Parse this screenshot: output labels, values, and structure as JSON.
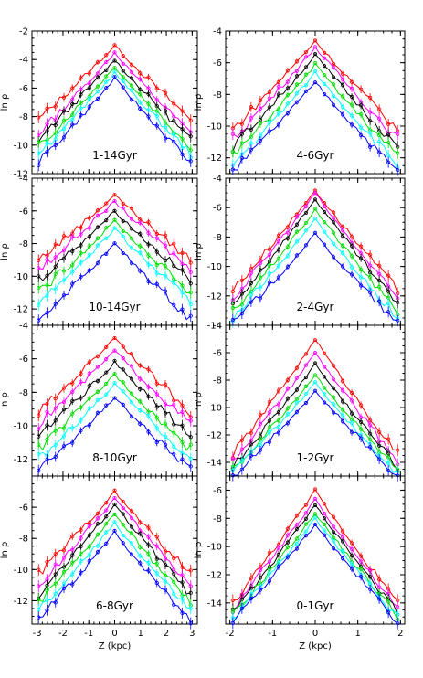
{
  "chart_data": {
    "type": "line",
    "columns": 2,
    "rows": 4,
    "series_colors": [
      "#ff0000",
      "#ff00ff",
      "#000000",
      "#00dd00",
      "#00ffff",
      "#0000ff"
    ],
    "left_column": {
      "xlabel": "Z (kpc)",
      "xlim": [
        -3.2,
        3.2
      ],
      "xticks": [
        "-3",
        "-2",
        "-1",
        "0",
        "1",
        "2",
        "3"
      ]
    },
    "right_column": {
      "xlabel": "Z (kpc)",
      "xlim": [
        -2.1,
        2.1
      ],
      "xticks": [
        "-2",
        "-1",
        "0",
        "1",
        "2"
      ]
    },
    "panels": [
      {
        "id": "left-1",
        "col": 0,
        "row": 0,
        "label": "1-14Gyr",
        "ylabel": "ln ρ",
        "ylim": [
          -12,
          -2
        ],
        "yticks": [
          "-2",
          "-4",
          "-6",
          "-8",
          "-10",
          "-12"
        ],
        "curves": [
          {
            "peak": -3.0,
            "edge": -8.2
          },
          {
            "peak": -3.5,
            "edge": -9.2
          },
          {
            "peak": -4.0,
            "edge": -9.6
          },
          {
            "peak": -4.5,
            "edge": -10.1
          },
          {
            "peak": -4.9,
            "edge": -10.6
          },
          {
            "peak": -5.3,
            "edge": -11.2
          }
        ]
      },
      {
        "id": "right-1",
        "col": 1,
        "row": 0,
        "label": "4-6Gyr",
        "ylabel": "ln ρ",
        "ylim": [
          -13,
          -4
        ],
        "yticks": [
          "-4",
          "-6",
          "-8",
          "-10",
          "-12"
        ],
        "curves": [
          {
            "peak": -4.6,
            "edge": -10.2
          },
          {
            "peak": -5.0,
            "edge": -10.8
          },
          {
            "peak": -5.5,
            "edge": -11.3
          },
          {
            "peak": -6.1,
            "edge": -11.9
          },
          {
            "peak": -6.6,
            "edge": -12.4
          },
          {
            "peak": -7.2,
            "edge": -12.9
          }
        ]
      },
      {
        "id": "left-2",
        "col": 0,
        "row": 1,
        "label": "10-14Gyr",
        "ylabel": "ln ρ",
        "ylim": [
          -13,
          -4
        ],
        "yticks": [
          "-4",
          "-6",
          "-8",
          "-10",
          "-12"
        ],
        "curves": [
          {
            "peak": -5.0,
            "edge": -9.0
          },
          {
            "peak": -5.4,
            "edge": -9.6
          },
          {
            "peak": -6.0,
            "edge": -10.2
          },
          {
            "peak": -6.6,
            "edge": -11.0
          },
          {
            "peak": -7.1,
            "edge": -11.6
          },
          {
            "peak": -8.0,
            "edge": -12.6
          }
        ]
      },
      {
        "id": "right-2",
        "col": 1,
        "row": 1,
        "label": "2-4Gyr",
        "ylabel": "ln ρ",
        "ylim": [
          -14,
          -4
        ],
        "yticks": [
          "-4",
          "-6",
          "-8",
          "-10",
          "-12",
          "-14"
        ],
        "curves": [
          {
            "peak": -4.8,
            "edge": -11.6
          },
          {
            "peak": -5.0,
            "edge": -12.2
          },
          {
            "peak": -5.4,
            "edge": -12.6
          },
          {
            "peak": -6.1,
            "edge": -13.1
          },
          {
            "peak": -6.8,
            "edge": -13.5
          },
          {
            "peak": -7.8,
            "edge": -13.9
          }
        ]
      },
      {
        "id": "left-3",
        "col": 0,
        "row": 2,
        "label": "8-10Gyr",
        "ylabel": "ln ρ",
        "ylim": [
          -13,
          -4
        ],
        "yticks": [
          "-4",
          "-6",
          "-8",
          "-10",
          "-12"
        ],
        "curves": [
          {
            "peak": -4.7,
            "edge": -9.2
          },
          {
            "peak": -5.5,
            "edge": -9.9
          },
          {
            "peak": -6.2,
            "edge": -10.6
          },
          {
            "peak": -6.9,
            "edge": -11.4
          },
          {
            "peak": -7.5,
            "edge": -12.0
          },
          {
            "peak": -8.3,
            "edge": -12.7
          }
        ]
      },
      {
        "id": "right-3",
        "col": 1,
        "row": 2,
        "label": "1-2Gyr",
        "ylabel": "ln ρ",
        "ylim": [
          -15,
          -4
        ],
        "yticks": [
          "-4",
          "-6",
          "-8",
          "-10",
          "-12",
          "-14"
        ],
        "curves": [
          {
            "peak": -5.0,
            "edge": -13.4
          },
          {
            "peak": -6.0,
            "edge": -13.9
          },
          {
            "peak": -6.8,
            "edge": -14.3
          },
          {
            "peak": -7.6,
            "edge": -14.6
          },
          {
            "peak": -8.2,
            "edge": -14.8
          },
          {
            "peak": -8.8,
            "edge": -15.0
          }
        ]
      },
      {
        "id": "left-4",
        "col": 0,
        "row": 3,
        "label": "6-8Gyr",
        "ylabel": "ln ρ",
        "ylim": [
          -13.5,
          -4
        ],
        "yticks": [
          "-6",
          "-8",
          "-10",
          "-12"
        ],
        "curves": [
          {
            "peak": -5.0,
            "edge": -10.3
          },
          {
            "peak": -5.4,
            "edge": -11.0
          },
          {
            "peak": -5.8,
            "edge": -11.6
          },
          {
            "peak": -6.4,
            "edge": -12.2
          },
          {
            "peak": -7.0,
            "edge": -12.7
          },
          {
            "peak": -7.6,
            "edge": -13.2
          }
        ]
      },
      {
        "id": "right-4",
        "col": 1,
        "row": 3,
        "label": "0-1Gyr",
        "ylabel": "ln ρ",
        "ylim": [
          -15.5,
          -5
        ],
        "yticks": [
          "-6",
          "-8",
          "-10",
          "-12",
          "-14"
        ],
        "curves": [
          {
            "peak": -6.0,
            "edge": -14.0
          },
          {
            "peak": -6.6,
            "edge": -14.4
          },
          {
            "peak": -7.0,
            "edge": -14.7
          },
          {
            "peak": -7.6,
            "edge": -14.9
          },
          {
            "peak": -8.0,
            "edge": -15.1
          },
          {
            "peak": -8.4,
            "edge": -15.3
          }
        ]
      }
    ]
  }
}
